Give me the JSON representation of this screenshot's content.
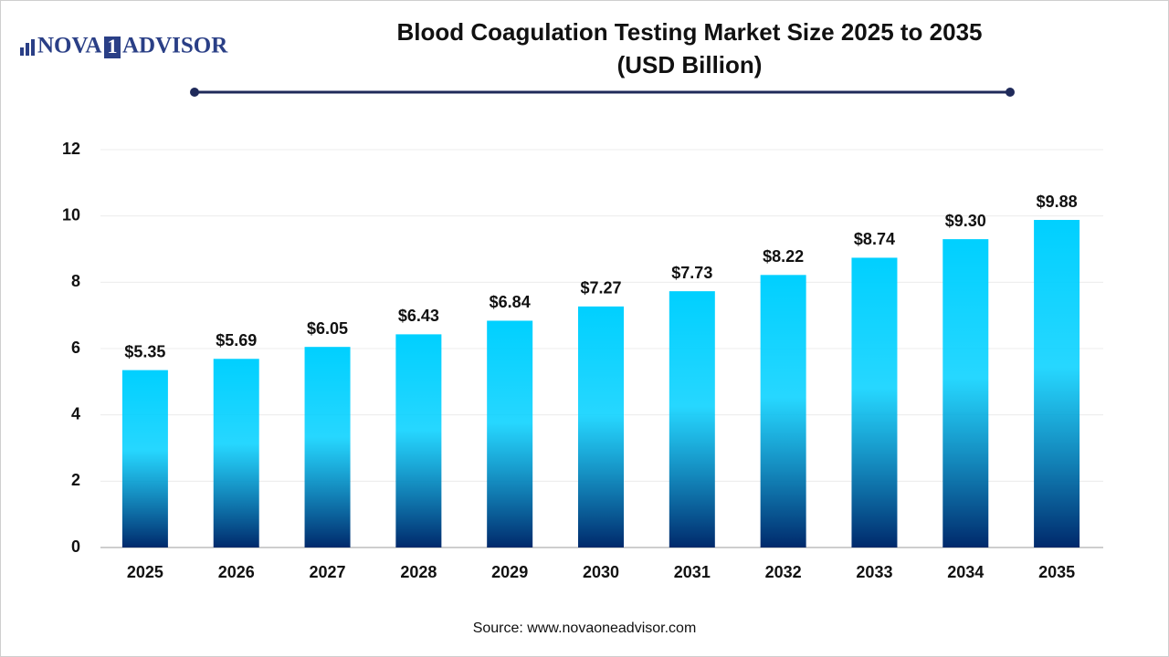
{
  "logo": {
    "left": "NOVA",
    "mark": "1",
    "right": "ADVISOR"
  },
  "chart_data": {
    "type": "bar",
    "title": "Blood Coagulation Testing Market Size 2025 to 2035",
    "subtitle": "(USD Billion)",
    "categories": [
      "2025",
      "2026",
      "2027",
      "2028",
      "2029",
      "2030",
      "2031",
      "2032",
      "2033",
      "2034",
      "2035"
    ],
    "values": [
      5.35,
      5.69,
      6.05,
      6.43,
      6.84,
      7.27,
      7.73,
      8.22,
      8.74,
      9.3,
      9.88
    ],
    "value_labels": [
      "$5.35",
      "$5.69",
      "$6.05",
      "$6.43",
      "$6.84",
      "$7.27",
      "$7.73",
      "$8.22",
      "$8.74",
      "$9.30",
      "$9.88"
    ],
    "gradient": [
      "#00d0ff",
      "#00296b"
    ],
    "ylim": [
      0,
      12
    ],
    "yticks": [
      0,
      2,
      4,
      6,
      8,
      10,
      12
    ],
    "grid": true,
    "source": "Source: www.novaoneadvisor.com"
  }
}
